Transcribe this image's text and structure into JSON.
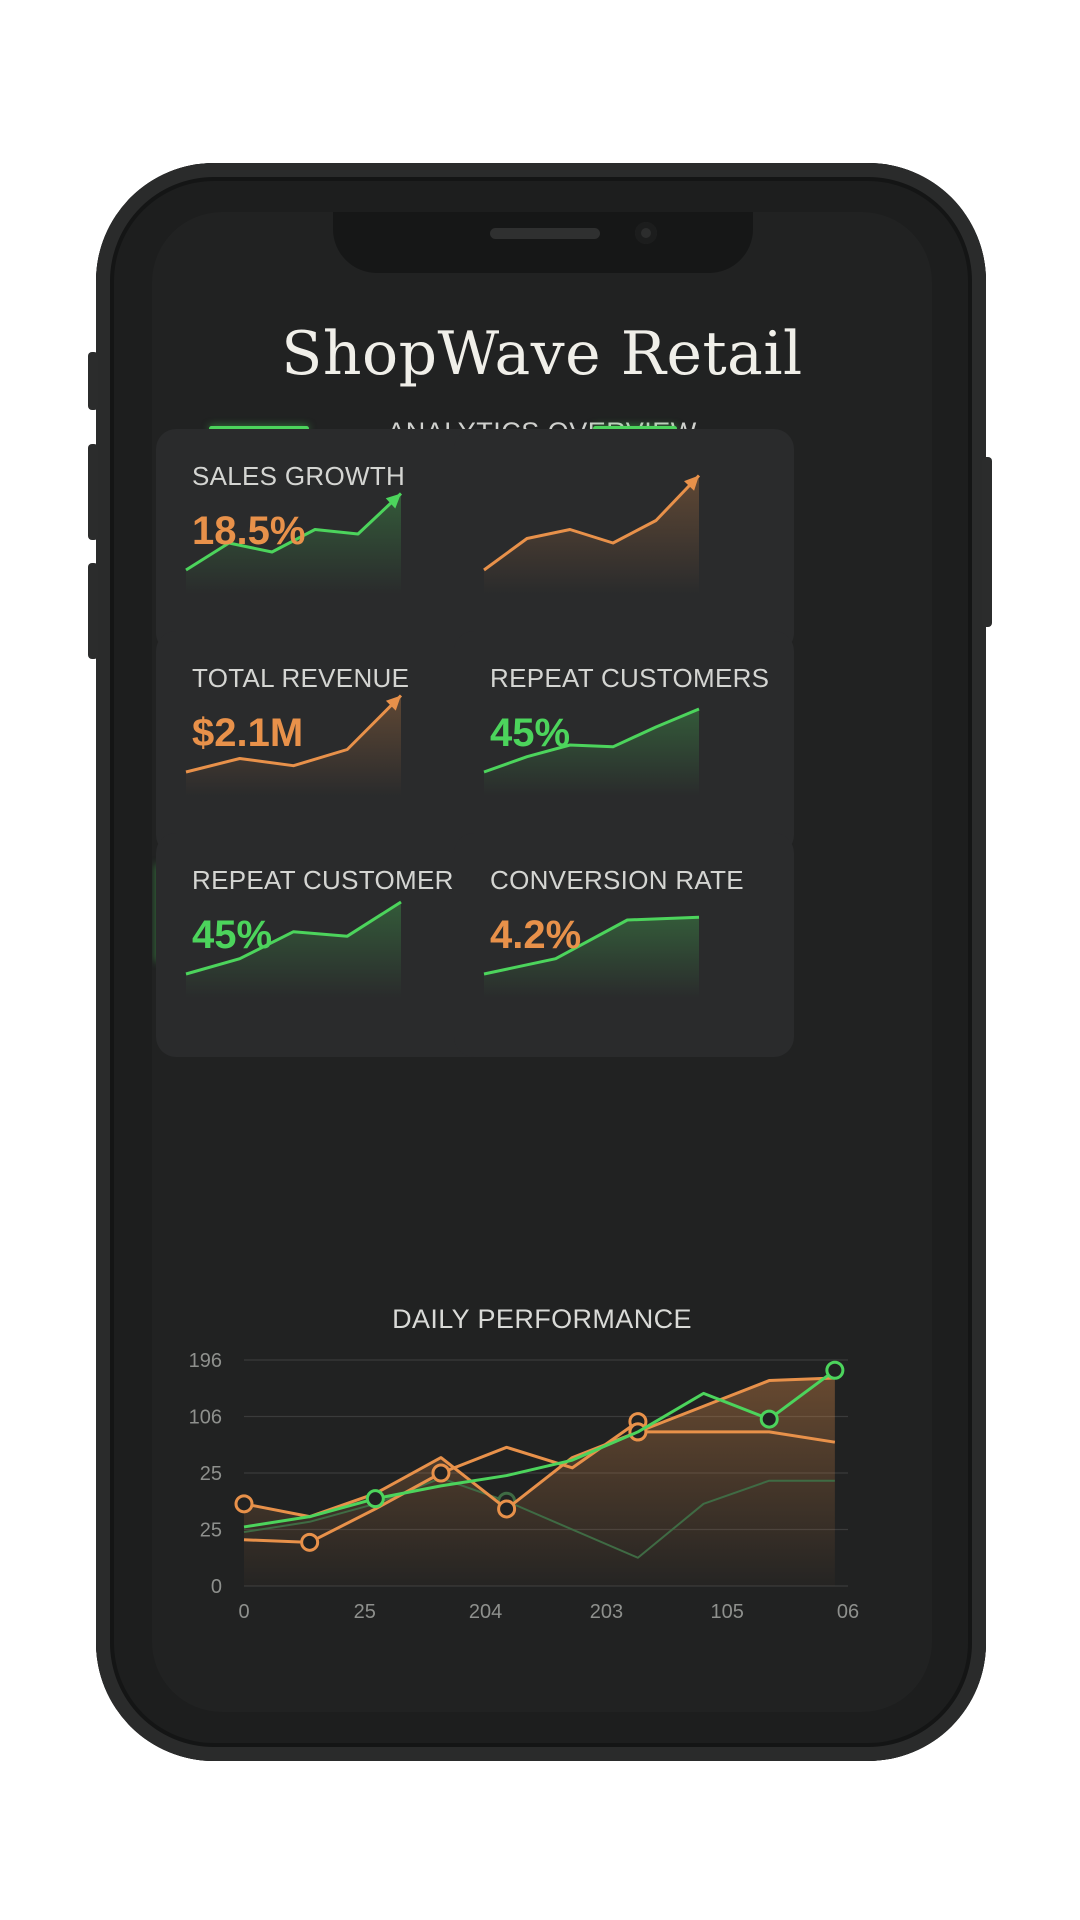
{
  "app": {
    "title": "ShopWave Retail",
    "subtitle": "ANALYTICS OVERVIEW"
  },
  "colors": {
    "green": "#4cd45c",
    "orange": "#e8914a",
    "background": "#212222",
    "card": "#2a2b2c"
  },
  "cards": [
    {
      "label": "SALES GROWTH",
      "value": "18.5%",
      "value_color": "#e8914a",
      "trend_color": "#4cd45c",
      "trend": [
        10,
        40,
        30,
        55,
        50,
        95
      ],
      "arrow": true
    },
    {
      "label": "",
      "value": "",
      "value_color": "#e8914a",
      "trend_color": "#e8914a",
      "trend": [
        10,
        45,
        55,
        40,
        65,
        115
      ],
      "arrow": true
    },
    {
      "label": "TOTAL REVENUE",
      "value": "$2.1M",
      "value_color": "#e8914a",
      "trend_color": "#e8914a",
      "trend": [
        10,
        25,
        17,
        35,
        95
      ],
      "arrow": true
    },
    {
      "label": "REPEAT CUSTOMERS",
      "value": "45%",
      "value_color": "#4cd45c",
      "trend_color": "#4cd45c",
      "trend": [
        10,
        27,
        40,
        38,
        60,
        80
      ],
      "arrow": false
    },
    {
      "label": "REPEAT CUSTOMERS",
      "value": "45%",
      "value_color": "#4cd45c",
      "trend_color": "#4cd45c",
      "trend": [
        10,
        27,
        57,
        52,
        90
      ],
      "arrow": false
    },
    {
      "label": "CONVERSION RATE",
      "value": "4.2%",
      "value_color": "#e8914a",
      "trend_color": "#4cd45c",
      "trend": [
        10,
        27,
        70,
        73
      ],
      "arrow": false
    }
  ],
  "chart_data": {
    "type": "line",
    "title": "DAILY PERFORMANCE",
    "x_tick_labels": [
      "0",
      "25",
      "204",
      "203",
      "105",
      "06"
    ],
    "y_tick_labels": [
      "0",
      "25",
      "25",
      "106",
      "196"
    ],
    "grid": true,
    "series": [
      {
        "color": "#4cd45c",
        "values": [
          [
            0,
            1.15
          ],
          [
            0.5,
            1.35
          ],
          [
            1.0,
            1.7
          ],
          [
            1.5,
            1.95
          ],
          [
            2.0,
            2.15
          ],
          [
            2.5,
            2.45
          ],
          [
            3.0,
            3.0
          ],
          [
            3.5,
            3.75
          ],
          [
            4.0,
            3.25
          ],
          [
            4.5,
            4.2
          ]
        ],
        "markers": [
          1.0,
          4.0,
          4.5
        ]
      },
      {
        "color": "#e8914a",
        "values": [
          [
            0,
            0.9
          ],
          [
            0.5,
            0.85
          ],
          [
            1.0,
            1.5
          ],
          [
            1.5,
            2.2
          ],
          [
            2.0,
            2.7
          ],
          [
            2.5,
            2.3
          ],
          [
            3.0,
            3.2
          ]
        ],
        "markers": [
          0.5,
          1.5,
          3.0
        ]
      },
      {
        "color": "#e8914a",
        "values": [
          [
            0,
            1.6
          ],
          [
            0.5,
            1.35
          ],
          [
            1.0,
            1.8
          ],
          [
            1.5,
            2.5
          ],
          [
            2.0,
            1.5
          ],
          [
            2.5,
            2.5
          ],
          [
            3.0,
            3.0
          ],
          [
            3.5,
            3.5
          ],
          [
            4.0,
            4.0
          ],
          [
            4.5,
            4.05
          ]
        ],
        "markers": [
          0,
          2.0,
          3.0
        ]
      },
      {
        "color": "#e8914a",
        "values": [
          [
            3.0,
            3.0
          ],
          [
            3.5,
            3.0
          ],
          [
            4.0,
            3.0
          ],
          [
            4.5,
            2.8
          ]
        ],
        "markers": [
          3.0
        ]
      },
      {
        "color": "#3f6b44",
        "values": [
          [
            0,
            1.05
          ],
          [
            0.5,
            1.25
          ],
          [
            1.0,
            1.6
          ],
          [
            1.5,
            2.1
          ],
          [
            2.0,
            1.65
          ],
          [
            3.0,
            0.55
          ],
          [
            3.5,
            1.6
          ],
          [
            4.0,
            2.05
          ],
          [
            4.5,
            2.05
          ]
        ],
        "markers": [
          2.0
        ]
      }
    ]
  }
}
